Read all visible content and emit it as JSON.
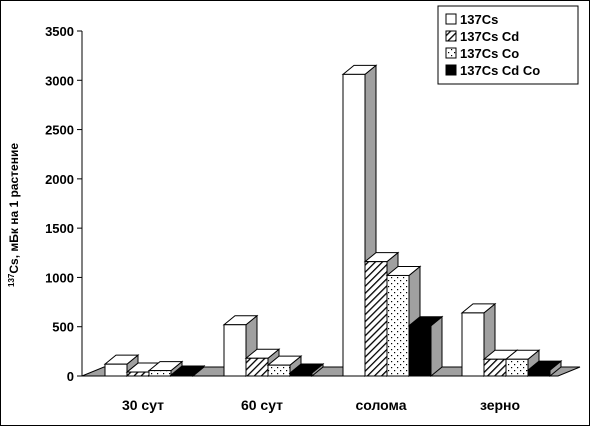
{
  "chart_data": {
    "type": "bar",
    "style": "3d-clustered",
    "categories": [
      "30 сут",
      "60 сут",
      "солома",
      "зерно"
    ],
    "series": [
      {
        "name": "137Cs",
        "values": [
          120,
          520,
          3060,
          640
        ],
        "fill": "white"
      },
      {
        "name": "137Cs Cd",
        "values": [
          40,
          180,
          1160,
          170
        ],
        "fill": "hatch"
      },
      {
        "name": "137Cs Co",
        "values": [
          55,
          110,
          1020,
          170
        ],
        "fill": "dots"
      },
      {
        "name": "137Cs Cd Co",
        "values": [
          10,
          30,
          510,
          60
        ],
        "fill": "black"
      }
    ],
    "ylabel_sup": "137",
    "ylabel": "Cs, мБк на 1 растение",
    "yticks": [
      "0",
      "500",
      "1000",
      "1500",
      "2000",
      "2500",
      "3000",
      "3500"
    ],
    "ylim": [
      0,
      3500
    ],
    "legend_position": "top-right",
    "grid": false,
    "colors": {
      "floor": "#a0a0a0",
      "side": "#a0a0a0",
      "black": "#000000",
      "white": "#ffffff"
    }
  }
}
